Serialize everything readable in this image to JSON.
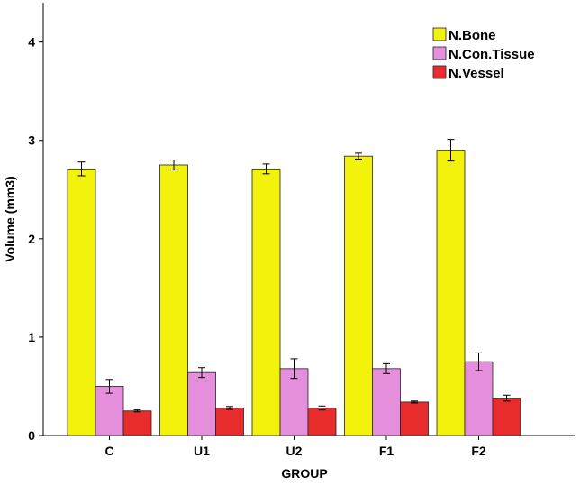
{
  "chart_data": {
    "type": "bar",
    "title": "",
    "xlabel": "GROUP",
    "ylabel": "Volume (mm3)",
    "ylim": [
      0,
      4.4
    ],
    "yticks": [
      0,
      1,
      2,
      3,
      4
    ],
    "categories": [
      "C",
      "U1",
      "U2",
      "F1",
      "F2"
    ],
    "grid": false,
    "legend_position": "top-right",
    "error_bars": true,
    "series": [
      {
        "name": "N.Bone",
        "color": "#f2f20a",
        "values": [
          2.71,
          2.75,
          2.71,
          2.84,
          2.9
        ],
        "error": [
          0.07,
          0.05,
          0.05,
          0.03,
          0.11
        ]
      },
      {
        "name": "N.Con.Tissue",
        "color": "#e58fdc",
        "values": [
          0.5,
          0.64,
          0.68,
          0.68,
          0.75
        ],
        "error": [
          0.07,
          0.05,
          0.1,
          0.05,
          0.09
        ]
      },
      {
        "name": "N.Vessel",
        "color": "#e82c2c",
        "values": [
          0.25,
          0.28,
          0.28,
          0.34,
          0.38
        ],
        "error": [
          0.01,
          0.015,
          0.02,
          0.01,
          0.03
        ]
      }
    ]
  }
}
